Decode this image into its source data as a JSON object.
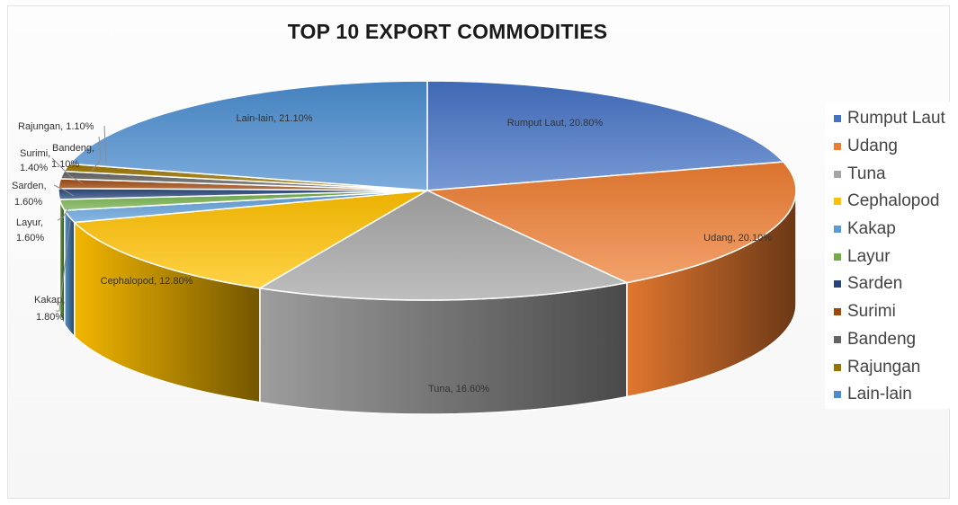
{
  "chart_data": {
    "type": "pie",
    "title": "TOP 10 EXPORT COMMODITIES",
    "legend_position": "right",
    "slices": [
      {
        "name": "Rumput Laut",
        "value": 20.8,
        "label": "Rumput Laut, 20.80%",
        "color": "#4472c4"
      },
      {
        "name": "Udang",
        "value": 20.1,
        "label": "Udang, 20.10%",
        "color": "#ed7d31"
      },
      {
        "name": "Tuna",
        "value": 16.6,
        "label": "Tuna, 16.60%",
        "color": "#a5a5a5"
      },
      {
        "name": "Cephalopod",
        "value": 12.8,
        "label": "Cephalopod, 12.80%",
        "color": "#ffc000"
      },
      {
        "name": "Kakap",
        "value": 1.8,
        "label": "Kakap, 1.80%",
        "color": "#5b9bd5"
      },
      {
        "name": "Layur",
        "value": 1.6,
        "label": "Layur, 1.60%",
        "color": "#70ad47"
      },
      {
        "name": "Sarden",
        "value": 1.6,
        "label": "Sarden, 1.60%",
        "color": "#264478"
      },
      {
        "name": "Surimi",
        "value": 1.4,
        "label": "Surimi, 1.40%",
        "color": "#9e480e"
      },
      {
        "name": "Bandeng",
        "value": 1.1,
        "label": "Bandeng, 1.10%",
        "color": "#636363"
      },
      {
        "name": "Rajungan",
        "value": 1.1,
        "label": "Rajungan, 1.10%",
        "color": "#997300"
      },
      {
        "name": "Lain-lain",
        "value": 21.1,
        "label": "Lain-lain, 21.10%",
        "color": "#4a8ccf"
      }
    ]
  }
}
